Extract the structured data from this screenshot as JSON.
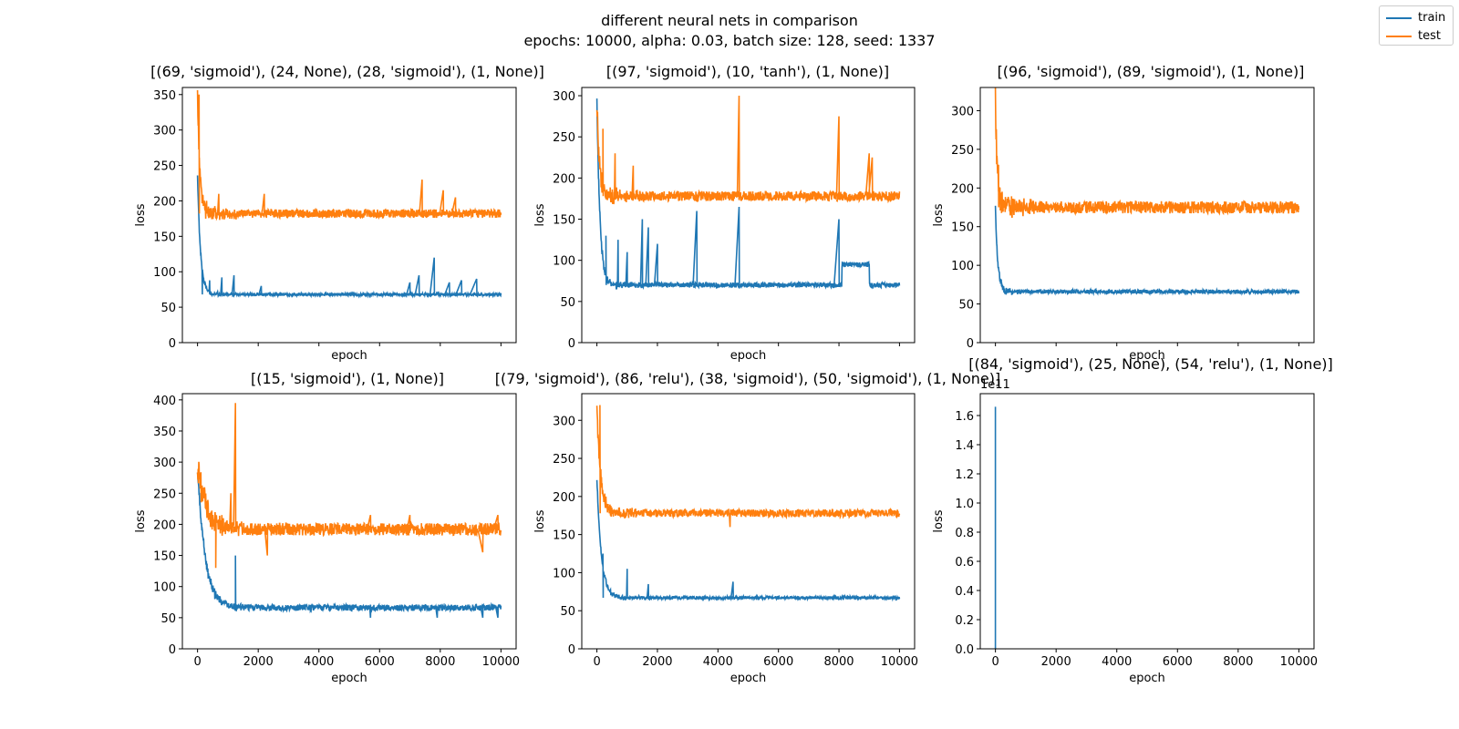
{
  "figure": {
    "suptitle_line1": "different neural nets in comparison",
    "suptitle_line2": "epochs: 10000, alpha: 0.03, batch size: 128, seed: 1337"
  },
  "legend": {
    "placement": "top-right (figure)",
    "items": [
      {
        "label": "train",
        "color": "#1f77b4"
      },
      {
        "label": "test",
        "color": "#ff7f0e"
      }
    ]
  },
  "chart_data": [
    {
      "type": "line",
      "title": "[(69, 'sigmoid'), (24, None), (28, 'sigmoid'), (1, None)]",
      "xlabel": "epoch",
      "ylabel": "loss",
      "xlim": [
        -500,
        10500
      ],
      "ylim": [
        0,
        360
      ],
      "xticks": [
        0,
        2000,
        4000,
        6000,
        8000,
        10000
      ],
      "show_xticklabels": false,
      "yticks": [
        0,
        50,
        100,
        150,
        200,
        250,
        300,
        350
      ],
      "series": [
        {
          "name": "train",
          "color": "#1f77b4",
          "base": 68,
          "noise": 2,
          "start": 235,
          "decay": 100,
          "spikes": [
            [
              150,
              95
            ],
            [
              400,
              88
            ],
            [
              800,
              92
            ],
            [
              1200,
              95
            ],
            [
              2100,
              80
            ],
            [
              7000,
              85
            ],
            [
              7300,
              95
            ],
            [
              7800,
              120
            ],
            [
              8300,
              85
            ],
            [
              8700,
              88
            ],
            [
              9200,
              90
            ]
          ]
        },
        {
          "name": "test",
          "color": "#ff7f0e",
          "base": 182,
          "noise": 6,
          "start": 350,
          "decay": 80,
          "spikes": [
            [
              50,
              350
            ],
            [
              300,
              200
            ],
            [
              700,
              210
            ],
            [
              2200,
              210
            ],
            [
              7400,
              230
            ],
            [
              8100,
              215
            ],
            [
              8500,
              205
            ]
          ]
        }
      ]
    },
    {
      "type": "line",
      "title": "[(97, 'sigmoid'), (10, 'tanh'), (1, None)]",
      "xlabel": "epoch",
      "ylabel": "loss",
      "xlim": [
        -500,
        10500
      ],
      "ylim": [
        0,
        310
      ],
      "xticks": [
        0,
        2000,
        4000,
        6000,
        8000,
        10000
      ],
      "show_xticklabels": false,
      "yticks": [
        0,
        50,
        100,
        150,
        200,
        250,
        300
      ],
      "series": [
        {
          "name": "train",
          "color": "#1f77b4",
          "base": 70,
          "noise": 3,
          "start": 295,
          "decay": 100,
          "spikes": [
            [
              300,
              130
            ],
            [
              700,
              125
            ],
            [
              1000,
              110
            ],
            [
              1500,
              150
            ],
            [
              1700,
              140
            ],
            [
              2000,
              120
            ],
            [
              3300,
              160
            ],
            [
              4700,
              165
            ],
            [
              8000,
              150
            ]
          ],
          "step": [
            [
              8100,
              9000,
              95
            ]
          ]
        },
        {
          "name": "test",
          "color": "#ff7f0e",
          "base": 178,
          "noise": 6,
          "start": 290,
          "decay": 80,
          "spikes": [
            [
              200,
              260
            ],
            [
              600,
              230
            ],
            [
              1200,
              215
            ],
            [
              4700,
              300
            ],
            [
              8000,
              275
            ],
            [
              9000,
              230
            ],
            [
              9100,
              225
            ]
          ]
        }
      ]
    },
    {
      "type": "line",
      "title": "[(96, 'sigmoid'), (89, 'sigmoid'), (1, None)]",
      "xlabel": "epoch",
      "ylabel": "loss",
      "xlim": [
        -500,
        10500
      ],
      "ylim": [
        0,
        330
      ],
      "xticks": [
        0,
        2000,
        4000,
        6000,
        8000,
        10000
      ],
      "show_xticklabels": false,
      "yticks": [
        0,
        50,
        100,
        150,
        200,
        250,
        300
      ],
      "series": [
        {
          "name": "train",
          "color": "#1f77b4",
          "base": 66,
          "noise": 2.5,
          "start": 175,
          "decay": 80,
          "spikes": []
        },
        {
          "name": "test",
          "color": "#ff7f0e",
          "base": 175,
          "noise": 8,
          "start": 318,
          "decay": 60,
          "spikes": [
            [
              100,
              230
            ]
          ]
        }
      ]
    },
    {
      "type": "line",
      "title": "[(15, 'sigmoid'), (1, None)]",
      "xlabel": "epoch",
      "ylabel": "loss",
      "xlim": [
        -500,
        10500
      ],
      "ylim": [
        0,
        410
      ],
      "xticks": [
        0,
        2000,
        4000,
        6000,
        8000,
        10000
      ],
      "xticklabels": [
        "0",
        "2000",
        "4000",
        "6000",
        "8000",
        "10000"
      ],
      "show_xticklabels": true,
      "yticks": [
        0,
        50,
        100,
        150,
        200,
        250,
        300,
        350,
        400
      ],
      "series": [
        {
          "name": "train",
          "color": "#1f77b4",
          "base": 66,
          "noise": 5,
          "start": 290,
          "decay": 250,
          "spikes": [
            [
              1250,
              150
            ],
            [
              5700,
              50
            ],
            [
              7900,
              50
            ],
            [
              9400,
              50
            ],
            [
              9900,
              50
            ]
          ]
        },
        {
          "name": "test",
          "color": "#ff7f0e",
          "base": 192,
          "noise": 10,
          "start": 290,
          "decay": 300,
          "spikes": [
            [
              600,
              130
            ],
            [
              800,
              215
            ],
            [
              1100,
              250
            ],
            [
              1250,
              395
            ],
            [
              2300,
              150
            ],
            [
              5700,
              215
            ],
            [
              7000,
              215
            ],
            [
              9400,
              155
            ],
            [
              9900,
              215
            ]
          ]
        }
      ]
    },
    {
      "type": "line",
      "title": "[(79, 'sigmoid'), (86, 'relu'), (38, 'sigmoid'), (50, 'sigmoid'), (1, None)]",
      "xlabel": "epoch",
      "ylabel": "loss",
      "xlim": [
        -500,
        10500
      ],
      "ylim": [
        0,
        335
      ],
      "xticks": [
        0,
        2000,
        4000,
        6000,
        8000,
        10000
      ],
      "xticklabels": [
        "0",
        "2000",
        "4000",
        "6000",
        "8000",
        "10000"
      ],
      "show_xticklabels": true,
      "yticks": [
        0,
        50,
        100,
        150,
        200,
        250,
        300
      ],
      "series": [
        {
          "name": "train",
          "color": "#1f77b4",
          "base": 67,
          "noise": 2,
          "start": 220,
          "decay": 150,
          "spikes": [
            [
              200,
              125
            ],
            [
              1000,
              105
            ],
            [
              1700,
              85
            ],
            [
              4500,
              88
            ]
          ]
        },
        {
          "name": "test",
          "color": "#ff7f0e",
          "base": 178,
          "noise": 5,
          "start": 320,
          "decay": 120,
          "spikes": [
            [
              100,
              320
            ],
            [
              4400,
              160
            ]
          ]
        }
      ]
    },
    {
      "type": "line",
      "title": "[(84, 'sigmoid'), (25, None), (54, 'relu'), (1, None)]",
      "xlabel": "epoch",
      "ylabel": "loss",
      "xlim": [
        -500,
        10500
      ],
      "ylim": [
        0,
        1.75
      ],
      "offset_text": "1e11",
      "xticks": [
        0,
        2000,
        4000,
        6000,
        8000,
        10000
      ],
      "xticklabels": [
        "0",
        "2000",
        "4000",
        "6000",
        "8000",
        "10000"
      ],
      "show_xticklabels": true,
      "yticks": [
        0.0,
        0.2,
        0.4,
        0.6,
        0.8,
        1.0,
        1.2,
        1.4,
        1.6
      ],
      "yticklabels": [
        "0.0",
        "0.2",
        "0.4",
        "0.6",
        "0.8",
        "1.0",
        "1.2",
        "1.4",
        "1.6"
      ],
      "series": [
        {
          "name": "train",
          "color": "#1f77b4",
          "shape": "spike_only",
          "x": [
            0,
            0,
            0
          ],
          "y": [
            0,
            1.66,
            0
          ]
        }
      ]
    }
  ]
}
